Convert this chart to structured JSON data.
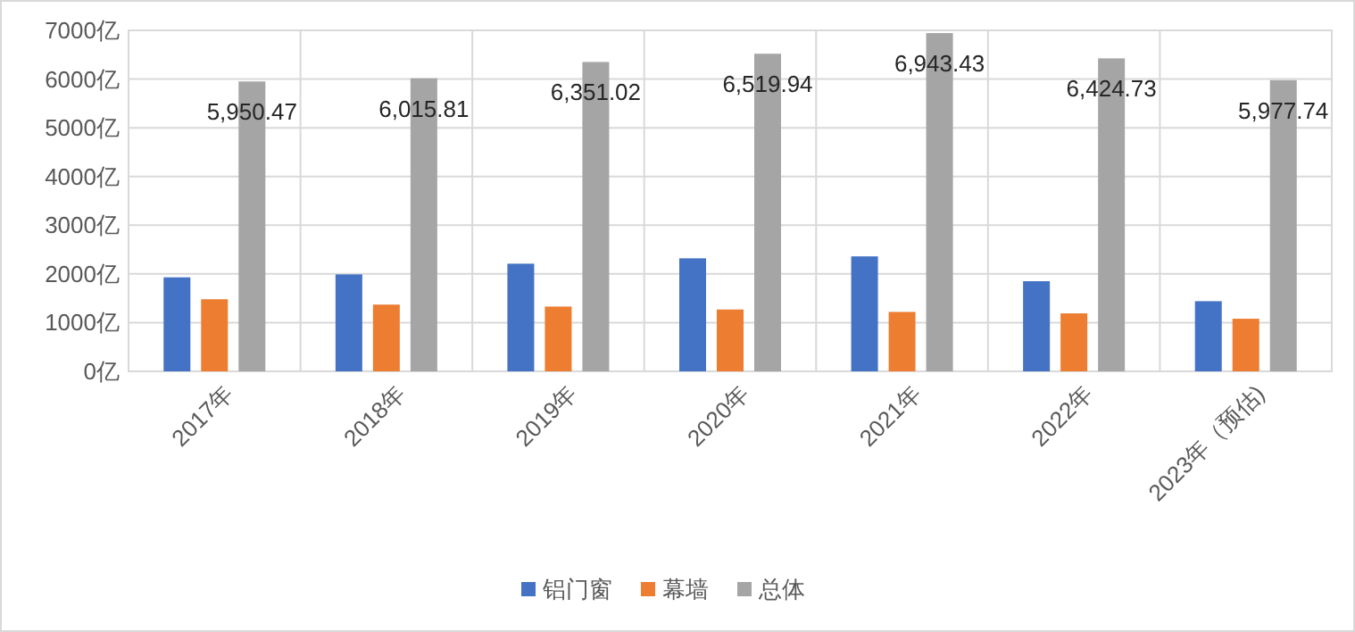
{
  "chart_data": {
    "type": "bar",
    "categories": [
      "2017年",
      "2018年",
      "2019年",
      "2020年",
      "2021年",
      "2022年",
      "2023年（预估)"
    ],
    "series": [
      {
        "name": "铝门窗",
        "color": "#4472c4",
        "values": [
          1930,
          1990,
          2210,
          2320,
          2360,
          1850,
          1440
        ]
      },
      {
        "name": "幕墙",
        "color": "#ed7d31",
        "values": [
          1480,
          1370,
          1330,
          1270,
          1220,
          1190,
          1080
        ]
      },
      {
        "name": "总体",
        "color": "#a5a5a5",
        "values": [
          5950.47,
          6015.81,
          6351.02,
          6519.94,
          6943.43,
          6424.73,
          5977.74
        ],
        "value_labels": [
          "5,950.47",
          "6,015.81",
          "6,351.02",
          "6,519.94",
          "6,943.43",
          "6,424.73",
          "5,977.74"
        ]
      }
    ],
    "ylim": [
      0,
      7000
    ],
    "yticks": [
      {
        "value": 0,
        "label": "0亿"
      },
      {
        "value": 1000,
        "label": "1000亿"
      },
      {
        "value": 2000,
        "label": "2000亿"
      },
      {
        "value": 3000,
        "label": "3000亿"
      },
      {
        "value": 4000,
        "label": "4000亿"
      },
      {
        "value": 5000,
        "label": "5000亿"
      },
      {
        "value": 6000,
        "label": "6000亿"
      },
      {
        "value": 7000,
        "label": "7000亿"
      }
    ],
    "grid": true,
    "legend": "bottom"
  }
}
